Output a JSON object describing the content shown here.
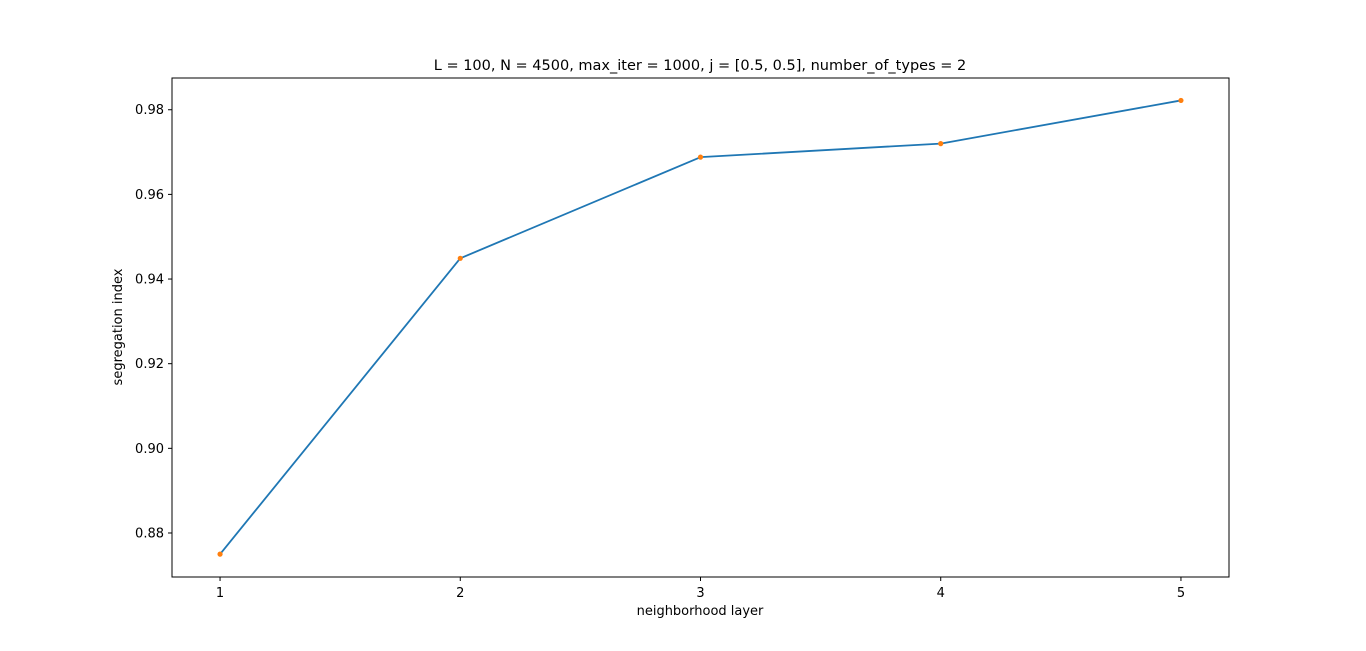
{
  "chart_data": {
    "type": "line",
    "title": "L = 100, N = 4500, max_iter = 1000, j = [0.5, 0.5], number_of_types = 2",
    "xlabel": "neighborhood layer",
    "ylabel": "segregation index",
    "x": [
      1,
      2,
      3,
      4,
      5
    ],
    "series": [
      {
        "values": [
          0.875,
          0.9449,
          0.9688,
          0.972,
          0.9822
        ],
        "line_color": "#1f77b4",
        "marker_color": "#ff7f0e"
      }
    ],
    "xlim": [
      0.8,
      5.2
    ],
    "ylim": [
      0.8696,
      0.9875
    ],
    "xticks": [
      1,
      2,
      3,
      4,
      5
    ],
    "yticks": [
      0.88,
      0.9,
      0.92,
      0.94,
      0.96,
      0.98
    ],
    "ytick_labels": [
      "0.88",
      "0.90",
      "0.92",
      "0.94",
      "0.96",
      "0.98"
    ],
    "grid": false,
    "legend": "none"
  }
}
